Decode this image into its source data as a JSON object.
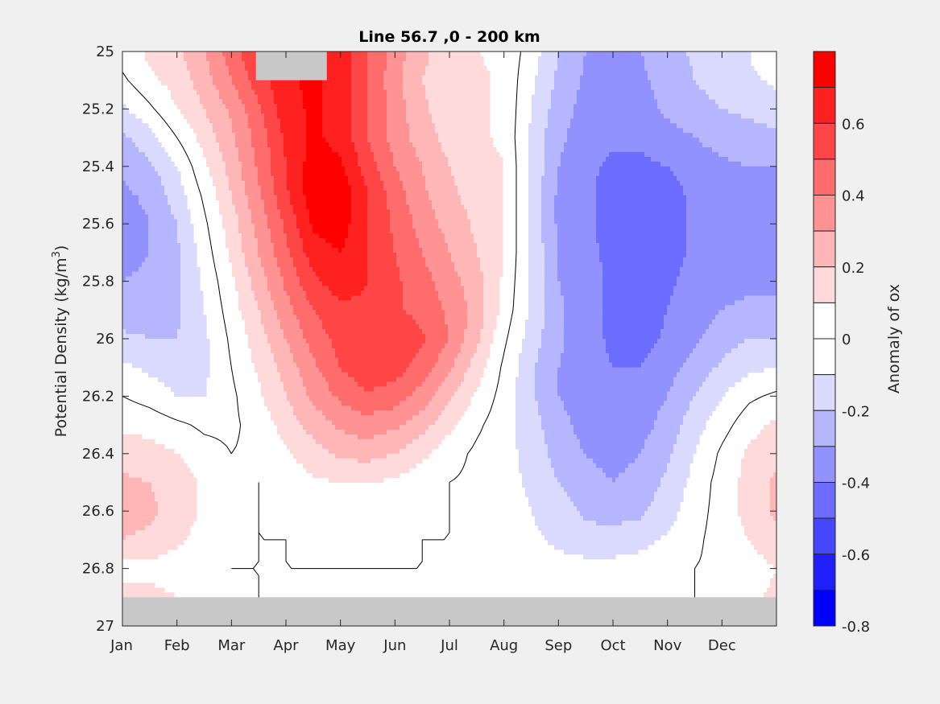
{
  "chart_data": {
    "type": "heatmap",
    "subtype": "filled-contour",
    "title": "Line 56.7 ,0 - 200 km",
    "xlabel": "",
    "ylabel": "Potential Density (kg/m",
    "ylabel_superscript": "3",
    "ylabel_suffix": ")",
    "x_tick_labels": [
      "Jan",
      "Feb",
      "Mar",
      "Apr",
      "May",
      "Jun",
      "Jul",
      "Aug",
      "Sep",
      "Oct",
      "Nov",
      "Dec"
    ],
    "x_range_months": [
      0,
      12
    ],
    "y_tick_labels": [
      "25",
      "25.2",
      "25.4",
      "25.6",
      "25.8",
      "26",
      "26.2",
      "26.4",
      "26.6",
      "26.8",
      "27"
    ],
    "y_ticks": [
      25,
      25.2,
      25.4,
      25.6,
      25.8,
      26,
      26.2,
      26.4,
      26.6,
      26.8,
      27
    ],
    "ylim": [
      25,
      27
    ],
    "y_reversed": true,
    "colorbar": {
      "label": "Anomaly of ox",
      "range": [
        -0.8,
        0.8
      ],
      "step": 0.1,
      "tick_labels": [
        "0.6",
        "0.4",
        "0.2",
        "0",
        "-0.2",
        "-0.4",
        "-0.6",
        "-0.8"
      ],
      "ticks": [
        0.6,
        0.4,
        0.2,
        0,
        -0.2,
        -0.4,
        -0.6,
        -0.8
      ],
      "colors_high_to_low": [
        "#ff0000",
        "#ff2020",
        "#ff4646",
        "#ff6c6c",
        "#ff9292",
        "#ffb6b6",
        "#ffdada",
        "#ffffff",
        "#ffffff",
        "#dadaff",
        "#b6b6ff",
        "#9292ff",
        "#6c6cff",
        "#4646ff",
        "#2020ff",
        "#0000ff"
      ]
    },
    "missing_color": "#c8c8c8",
    "missing_regions": [
      {
        "description": "deep layer below 26.9",
        "month_range": [
          0,
          12
        ],
        "density_range": [
          26.9,
          27
        ]
      },
      {
        "description": "surface gap in spring",
        "month_range": [
          2.45,
          3.75
        ],
        "density_range": [
          25,
          25.1
        ]
      }
    ],
    "zero_contour": true,
    "grid_months": [
      0,
      0.5,
      1,
      1.5,
      2,
      2.5,
      3,
      3.5,
      4,
      4.5,
      5,
      5.5,
      6,
      6.5,
      7,
      7.5,
      8,
      8.5,
      9,
      9.5,
      10,
      10.5,
      11,
      11.5,
      12
    ],
    "grid_density": [
      25,
      25.1,
      25.2,
      25.3,
      25.4,
      25.5,
      25.6,
      25.7,
      25.8,
      25.9,
      26,
      26.1,
      26.2,
      26.3,
      26.4,
      26.5,
      26.6,
      26.7,
      26.8,
      26.9
    ],
    "values": [
      [
        0.05,
        0.12,
        0.18,
        0.3,
        0.45,
        0.6,
        0.7,
        0.72,
        0.65,
        0.5,
        0.35,
        0.22,
        0.15,
        0.1,
        0.08,
        -0.05,
        -0.2,
        -0.3,
        -0.32,
        -0.3,
        -0.25,
        -0.18,
        -0.12,
        -0.1,
        0.0
      ],
      [
        -0.02,
        0.08,
        0.14,
        0.25,
        0.4,
        0.55,
        0.68,
        0.72,
        0.66,
        0.5,
        0.34,
        0.2,
        0.14,
        0.12,
        0.08,
        -0.08,
        -0.22,
        -0.32,
        -0.36,
        -0.32,
        -0.26,
        -0.2,
        -0.15,
        -0.12,
        -0.08
      ],
      [
        -0.12,
        -0.02,
        0.1,
        0.2,
        0.32,
        0.48,
        0.66,
        0.72,
        0.66,
        0.5,
        0.35,
        0.22,
        0.14,
        0.12,
        0.08,
        -0.1,
        -0.25,
        -0.34,
        -0.36,
        -0.34,
        -0.28,
        -0.24,
        -0.2,
        -0.18,
        -0.15
      ],
      [
        -0.22,
        -0.14,
        0.0,
        0.14,
        0.28,
        0.44,
        0.62,
        0.72,
        0.66,
        0.5,
        0.36,
        0.25,
        0.16,
        0.12,
        0.08,
        -0.12,
        -0.28,
        -0.35,
        -0.38,
        -0.38,
        -0.34,
        -0.3,
        -0.26,
        -0.24,
        -0.22
      ],
      [
        -0.28,
        -0.22,
        -0.1,
        0.08,
        0.24,
        0.42,
        0.6,
        0.75,
        0.72,
        0.55,
        0.4,
        0.3,
        0.2,
        0.15,
        0.1,
        -0.12,
        -0.3,
        -0.38,
        -0.42,
        -0.42,
        -0.4,
        -0.35,
        -0.32,
        -0.3,
        -0.3
      ],
      [
        -0.32,
        -0.28,
        -0.15,
        0.02,
        0.2,
        0.38,
        0.58,
        0.76,
        0.78,
        0.6,
        0.45,
        0.32,
        0.22,
        0.16,
        0.1,
        -0.12,
        -0.32,
        -0.38,
        -0.44,
        -0.46,
        -0.44,
        -0.38,
        -0.35,
        -0.35,
        -0.35
      ],
      [
        -0.35,
        -0.3,
        -0.2,
        -0.02,
        0.15,
        0.34,
        0.52,
        0.72,
        0.75,
        0.6,
        0.48,
        0.36,
        0.26,
        0.18,
        0.1,
        -0.12,
        -0.32,
        -0.38,
        -0.44,
        -0.46,
        -0.45,
        -0.38,
        -0.35,
        -0.35,
        -0.35
      ],
      [
        -0.34,
        -0.3,
        -0.22,
        -0.05,
        0.12,
        0.3,
        0.48,
        0.65,
        0.7,
        0.6,
        0.5,
        0.4,
        0.3,
        0.2,
        0.1,
        -0.12,
        -0.3,
        -0.38,
        -0.42,
        -0.46,
        -0.44,
        -0.38,
        -0.35,
        -0.34,
        -0.34
      ],
      [
        -0.3,
        -0.28,
        -0.22,
        -0.08,
        0.08,
        0.25,
        0.42,
        0.58,
        0.65,
        0.6,
        0.52,
        0.44,
        0.34,
        0.24,
        0.08,
        -0.12,
        -0.3,
        -0.36,
        -0.42,
        -0.46,
        -0.42,
        -0.36,
        -0.34,
        -0.32,
        -0.32
      ],
      [
        -0.25,
        -0.25,
        -0.22,
        -0.1,
        0.05,
        0.2,
        0.36,
        0.5,
        0.58,
        0.58,
        0.52,
        0.46,
        0.38,
        0.26,
        0.06,
        -0.12,
        -0.28,
        -0.36,
        -0.42,
        -0.45,
        -0.4,
        -0.35,
        -0.3,
        -0.28,
        -0.28
      ],
      [
        -0.18,
        -0.2,
        -0.2,
        -0.12,
        0.02,
        0.15,
        0.3,
        0.44,
        0.54,
        0.6,
        0.58,
        0.52,
        0.4,
        0.22,
        0.02,
        -0.15,
        -0.28,
        -0.36,
        -0.42,
        -0.45,
        -0.38,
        -0.32,
        -0.25,
        -0.2,
        -0.2
      ],
      [
        -0.08,
        -0.12,
        -0.15,
        -0.12,
        0.0,
        0.12,
        0.24,
        0.38,
        0.5,
        0.58,
        0.55,
        0.45,
        0.32,
        0.15,
        -0.02,
        -0.18,
        -0.3,
        -0.36,
        -0.4,
        -0.4,
        -0.34,
        -0.26,
        -0.18,
        -0.12,
        -0.1
      ],
      [
        0.0,
        -0.04,
        -0.1,
        -0.1,
        -0.02,
        0.08,
        0.2,
        0.32,
        0.42,
        0.48,
        0.45,
        0.36,
        0.22,
        0.08,
        -0.04,
        -0.18,
        -0.3,
        -0.36,
        -0.38,
        -0.36,
        -0.3,
        -0.2,
        -0.1,
        -0.02,
        0.02
      ],
      [
        0.08,
        0.06,
        0.02,
        -0.02,
        -0.02,
        0.04,
        0.14,
        0.24,
        0.32,
        0.36,
        0.32,
        0.24,
        0.12,
        0.02,
        -0.06,
        -0.16,
        -0.26,
        -0.34,
        -0.36,
        -0.34,
        -0.26,
        -0.14,
        -0.04,
        0.06,
        0.12
      ],
      [
        0.16,
        0.14,
        0.1,
        0.04,
        0.0,
        0.02,
        0.08,
        0.16,
        0.22,
        0.24,
        0.2,
        0.12,
        0.04,
        -0.02,
        -0.06,
        -0.14,
        -0.24,
        -0.3,
        -0.34,
        -0.3,
        -0.22,
        -0.1,
        0.02,
        0.12,
        0.18
      ],
      [
        0.22,
        0.2,
        0.16,
        0.08,
        0.02,
        0.0,
        0.04,
        0.08,
        0.1,
        0.1,
        0.08,
        0.04,
        0.0,
        -0.02,
        -0.06,
        -0.12,
        -0.2,
        -0.26,
        -0.3,
        -0.26,
        -0.18,
        -0.06,
        0.04,
        0.14,
        0.22
      ],
      [
        0.24,
        0.22,
        0.16,
        0.08,
        0.02,
        0.0,
        0.02,
        0.04,
        0.04,
        0.04,
        0.04,
        0.02,
        0.0,
        -0.02,
        -0.04,
        -0.1,
        -0.16,
        -0.22,
        -0.24,
        -0.22,
        -0.14,
        -0.04,
        0.04,
        0.14,
        0.22
      ],
      [
        0.2,
        0.18,
        0.12,
        0.06,
        0.02,
        0.0,
        0.0,
        0.02,
        0.02,
        0.02,
        0.02,
        0.0,
        0.0,
        -0.02,
        -0.04,
        -0.08,
        -0.12,
        -0.16,
        -0.16,
        -0.14,
        -0.08,
        -0.02,
        0.04,
        0.1,
        0.16
      ],
      [
        0.06,
        0.06,
        0.04,
        0.02,
        0.0,
        0.0,
        0.0,
        0.0,
        0.0,
        0.0,
        0.0,
        0.0,
        0.0,
        0.0,
        -0.02,
        -0.04,
        -0.06,
        -0.06,
        -0.06,
        -0.04,
        -0.02,
        0.0,
        0.02,
        0.06,
        0.1
      ],
      [
        0.14,
        0.14,
        0.1,
        0.04,
        0.02,
        0.0,
        0.0,
        0.0,
        0.0,
        0.0,
        0.0,
        0.0,
        0.0,
        0.0,
        0.0,
        0.0,
        0.0,
        0.0,
        0.0,
        0.0,
        0.0,
        0.0,
        0.04,
        0.08,
        0.12
      ]
    ]
  }
}
